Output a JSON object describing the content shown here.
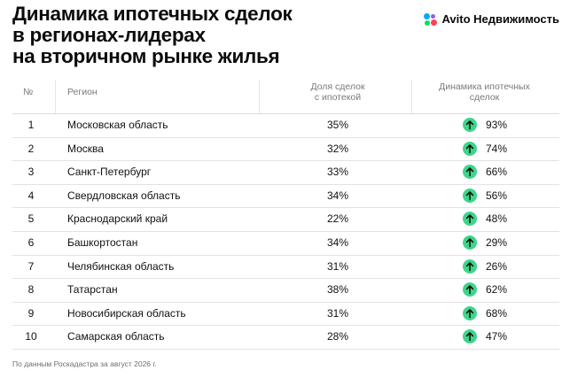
{
  "title": {
    "line1": "Динамика ипотечных сделок",
    "line2": "в регионах-лидерах",
    "line3": "на вторичном рынке жилья"
  },
  "brand": {
    "label": "Avito Недвижимость",
    "icon": "avito-dots-logo-icon"
  },
  "table": {
    "headers": {
      "num": "№",
      "region": "Регион",
      "share_line1": "Доля сделок",
      "share_line2": "с ипотекой",
      "dynamics_line1": "Динамика ипотечных",
      "dynamics_line2": "сделок"
    },
    "rows": [
      {
        "num": "1",
        "region": "Московская область",
        "share": "35%",
        "dynamics": "93%"
      },
      {
        "num": "2",
        "region": "Москва",
        "share": "32%",
        "dynamics": "74%"
      },
      {
        "num": "3",
        "region": "Санкт-Петербург",
        "share": "33%",
        "dynamics": "66%"
      },
      {
        "num": "4",
        "region": "Свердловская область",
        "share": "34%",
        "dynamics": "56%"
      },
      {
        "num": "5",
        "region": "Краснодарский край",
        "share": "22%",
        "dynamics": "48%"
      },
      {
        "num": "6",
        "region": "Башкортостан",
        "share": "34%",
        "dynamics": "29%"
      },
      {
        "num": "7",
        "region": "Челябинская область",
        "share": "31%",
        "dynamics": "26%"
      },
      {
        "num": "8",
        "region": "Татарстан",
        "share": "38%",
        "dynamics": "62%"
      },
      {
        "num": "9",
        "region": "Новосибирская область",
        "share": "31%",
        "dynamics": "68%"
      },
      {
        "num": "10",
        "region": "Самарская область",
        "share": "28%",
        "dynamics": "47%"
      }
    ],
    "trend_icon": "arrow-up-icon",
    "colors": {
      "trend_up": "#3ed58a"
    }
  },
  "footnote": "По данным Роскадастра за август 2026 г."
}
